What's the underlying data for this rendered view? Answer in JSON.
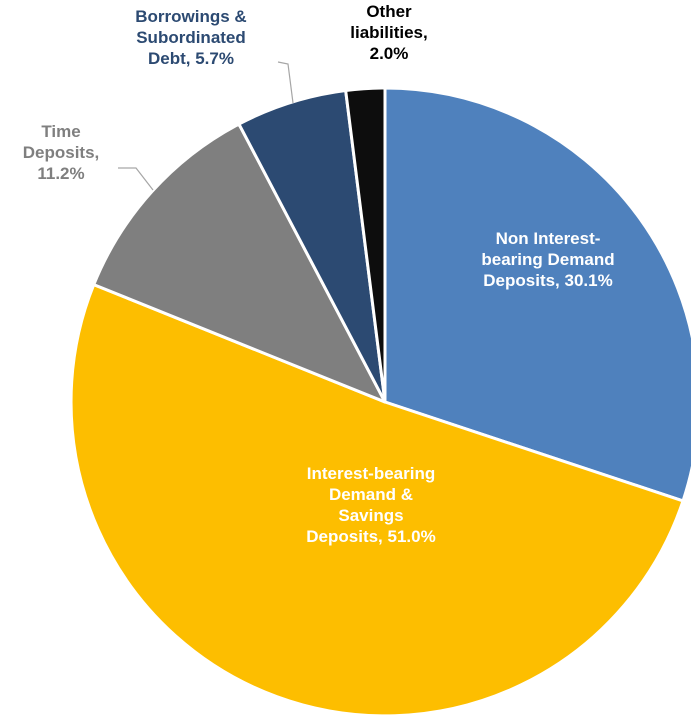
{
  "chart_data": {
    "type": "pie",
    "title": "",
    "slices": [
      {
        "name": "Non Interest-bearing Demand Deposits",
        "value": 30.1,
        "color": "#4f81bd",
        "label_color": "#ffffff",
        "label_lines": [
          "Non Interest-",
          "bearing Demand",
          "Deposits, 30.1%"
        ]
      },
      {
        "name": "Interest-bearing Demand & Savings Deposits",
        "value": 51.0,
        "color": "#fdbe00",
        "label_color": "#ffffff",
        "label_lines": [
          "Interest-bearing",
          "Demand &",
          "Savings",
          "Deposits, 51.0%"
        ]
      },
      {
        "name": "Time Deposits",
        "value": 11.2,
        "color": "#7f7f7f",
        "label_color": "#7f7f7f",
        "label_lines": [
          "Time",
          "Deposits,",
          "11.2%"
        ]
      },
      {
        "name": "Borrowings & Subordinated Debt",
        "value": 5.7,
        "color": "#2c4a72",
        "label_color": "#2c4a72",
        "label_lines": [
          "Borrowings &",
          "Subordinated",
          "Debt, 5.7%"
        ]
      },
      {
        "name": "Other liabilities",
        "value": 2.0,
        "color": "#0d0d0d",
        "label_color": "#000000",
        "label_lines": [
          "Other",
          "liabilities,",
          "2.0%"
        ]
      }
    ]
  }
}
